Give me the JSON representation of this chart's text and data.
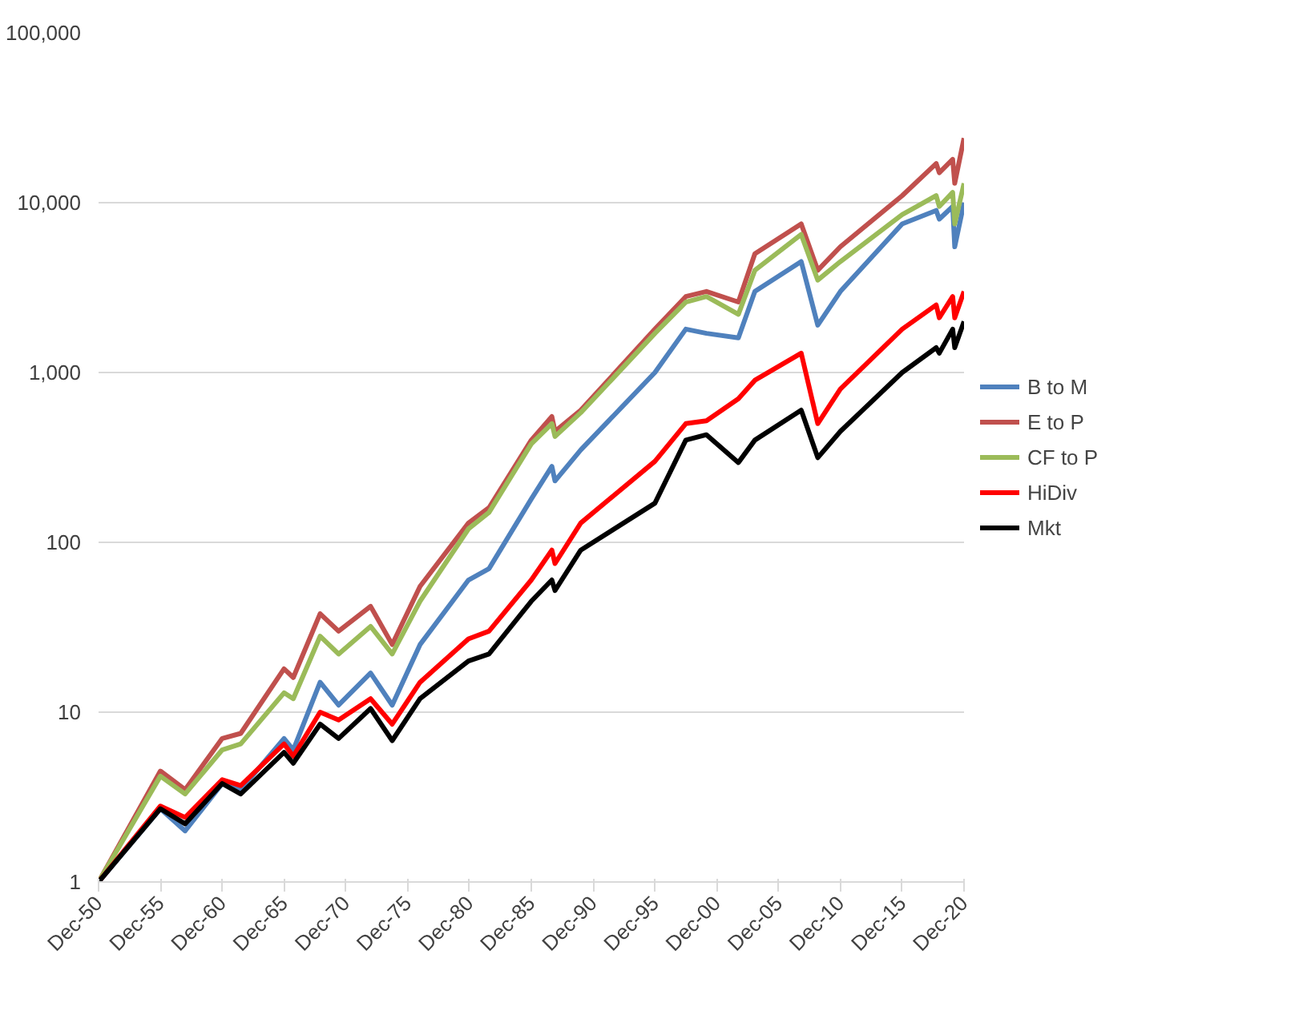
{
  "chart_data": {
    "type": "line",
    "log": "y",
    "grid": "y",
    "legend": "right",
    "line_style": "solid",
    "marker": "none",
    "xlim": [
      "1950-12",
      "2020-12"
    ],
    "ylim": [
      1,
      100000
    ],
    "xticks": [
      {
        "value": "1950-12",
        "label": "Dec-50"
      },
      {
        "value": "1955-12",
        "label": "Dec-55"
      },
      {
        "value": "1960-12",
        "label": "Dec-60"
      },
      {
        "value": "1965-12",
        "label": "Dec-65"
      },
      {
        "value": "1970-12",
        "label": "Dec-70"
      },
      {
        "value": "1975-12",
        "label": "Dec-75"
      },
      {
        "value": "1980-12",
        "label": "Dec-80"
      },
      {
        "value": "1985-12",
        "label": "Dec-85"
      },
      {
        "value": "1990-12",
        "label": "Dec-90"
      },
      {
        "value": "1995-12",
        "label": "Dec-95"
      },
      {
        "value": "2000-12",
        "label": "Dec-00"
      },
      {
        "value": "2005-12",
        "label": "Dec-05"
      },
      {
        "value": "2010-12",
        "label": "Dec-10"
      },
      {
        "value": "2015-12",
        "label": "Dec-15"
      },
      {
        "value": "2020-12",
        "label": "Dec-20"
      }
    ],
    "yticks": [
      1,
      10,
      100,
      {
        "value": 1000,
        "label": "1,000"
      },
      {
        "value": 10000,
        "label": "10,000"
      },
      {
        "value": 100000,
        "label": "100,000"
      }
    ],
    "x": [
      "1950-12",
      "1955-12",
      "1957-12",
      "1960-12",
      "1962-06",
      "1965-12",
      "1966-09",
      "1968-11",
      "1970-05",
      "1972-12",
      "1974-09",
      "1976-12",
      "1980-11",
      "1982-07",
      "1985-12",
      "1987-08",
      "1987-11",
      "1989-12",
      "1995-12",
      "1998-06",
      "2000-02",
      "2002-09",
      "2004-01",
      "2007-10",
      "2009-02",
      "2010-12",
      "2015-12",
      "2018-09",
      "2018-12",
      "2020-01",
      "2020-03",
      "2020-12"
    ],
    "series": [
      {
        "name": "B to M",
        "color": "#4f81bd",
        "values": [
          1,
          2.7,
          2.0,
          3.8,
          3.5,
          7,
          6,
          15,
          11,
          17,
          11,
          25,
          60,
          70,
          180,
          280,
          230,
          350,
          1000,
          1800,
          1700,
          1600,
          3000,
          4500,
          1900,
          3000,
          7500,
          9000,
          8000,
          9500,
          5500,
          10000
        ]
      },
      {
        "name": "E to P",
        "color": "#c0504d",
        "values": [
          1,
          4.5,
          3.5,
          7,
          7.5,
          18,
          16,
          38,
          30,
          42,
          25,
          55,
          130,
          160,
          400,
          550,
          450,
          600,
          1800,
          2800,
          3000,
          2600,
          5000,
          7500,
          4000,
          5500,
          11000,
          17000,
          15000,
          18000,
          13000,
          24000
        ]
      },
      {
        "name": "CF to P",
        "color": "#9bbb59",
        "values": [
          1,
          4.2,
          3.3,
          6,
          6.5,
          13,
          12,
          28,
          22,
          32,
          22,
          45,
          120,
          150,
          380,
          500,
          420,
          580,
          1700,
          2600,
          2800,
          2200,
          4000,
          6500,
          3500,
          4500,
          8500,
          11000,
          9500,
          11500,
          7500,
          13000
        ]
      },
      {
        "name": "HiDiv",
        "color": "#ff0000",
        "values": [
          1,
          2.8,
          2.4,
          4.0,
          3.7,
          6.5,
          5.5,
          10,
          9,
          12,
          8.5,
          15,
          27,
          30,
          60,
          90,
          75,
          130,
          300,
          500,
          520,
          700,
          900,
          1300,
          500,
          800,
          1800,
          2500,
          2100,
          2800,
          2100,
          3000
        ]
      },
      {
        "name": "Mkt",
        "color": "#000000",
        "values": [
          1,
          2.7,
          2.2,
          3.8,
          3.3,
          5.8,
          5,
          8.5,
          7,
          10.5,
          6.8,
          12,
          20,
          22,
          45,
          60,
          52,
          90,
          170,
          400,
          430,
          295,
          400,
          600,
          315,
          450,
          1000,
          1400,
          1300,
          1800,
          1400,
          2000
        ]
      }
    ]
  }
}
